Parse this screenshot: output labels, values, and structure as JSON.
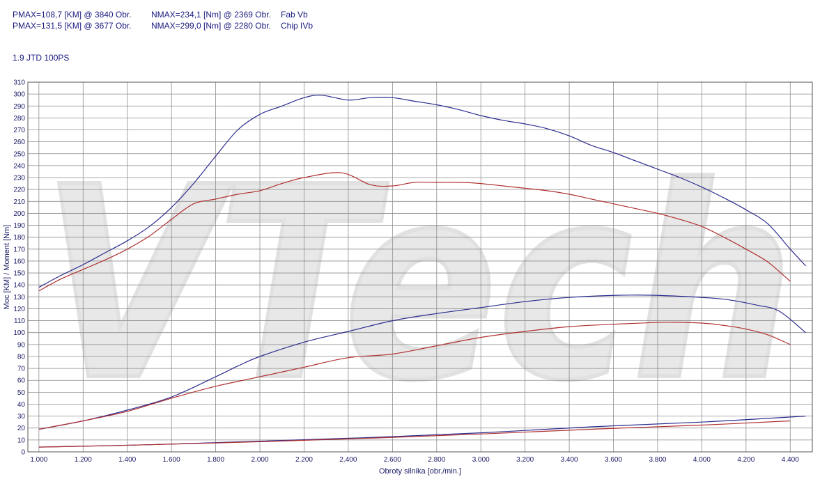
{
  "header": {
    "rows": [
      {
        "pmax": "PMAX=108,7 [KM] @ 3840 Obr.",
        "nmax": "NMAX=234,1 [Nm] @ 2369 Obr.",
        "name": "Fab Vb"
      },
      {
        "pmax": "PMAX=131,5 [KM] @ 3677 Obr.",
        "nmax": "NMAX=299,0 [Nm] @ 2280 Obr.",
        "name": "Chip IVb"
      }
    ],
    "engine": "1.9 JTD 100PS"
  },
  "watermark": "VTech",
  "chart_data": {
    "type": "line",
    "xlabel": "Obroty silnika [obr./min.]",
    "ylabel": "Moc [KM] / Moment [Nm]",
    "xlim": [
      950,
      4500
    ],
    "ylim": [
      0,
      310
    ],
    "x_ticks": [
      1000,
      1200,
      1400,
      1600,
      1800,
      2000,
      2200,
      2400,
      2600,
      2800,
      3000,
      3200,
      3400,
      3600,
      3800,
      4000,
      4200,
      4400
    ],
    "x_tick_labels": [
      "1.000",
      "1.200",
      "1.400",
      "1.600",
      "1.800",
      "2.000",
      "2.200",
      "2.400",
      "2.600",
      "2.800",
      "3.000",
      "3.200",
      "3.400",
      "3.600",
      "3.800",
      "4.000",
      "4.200",
      "4.400"
    ],
    "y_ticks": [
      0,
      10,
      20,
      30,
      40,
      50,
      60,
      70,
      80,
      90,
      100,
      110,
      120,
      130,
      140,
      150,
      160,
      170,
      180,
      190,
      200,
      210,
      220,
      230,
      240,
      250,
      260,
      270,
      280,
      290,
      300,
      310
    ],
    "grid": true,
    "colors": {
      "chip": "#2b2b8f",
      "stock": "#b03030",
      "grid": "#8c8c8c"
    },
    "series": [
      {
        "name": "Chip IVb",
        "group": "chip",
        "kind": "torque",
        "color": "#2b2b8f",
        "x": [
          1000,
          1100,
          1200,
          1300,
          1400,
          1500,
          1600,
          1700,
          1800,
          1900,
          2000,
          2100,
          2200,
          2280,
          2400,
          2500,
          2600,
          2700,
          2800,
          2900,
          3000,
          3100,
          3200,
          3300,
          3400,
          3500,
          3600,
          3700,
          3800,
          3900,
          4000,
          4100,
          4200,
          4300,
          4400,
          4470
        ],
        "y": [
          138,
          148,
          157,
          167,
          177,
          189,
          205,
          225,
          248,
          270,
          283,
          290,
          297,
          299,
          295,
          297,
          297,
          294,
          291,
          287,
          282,
          278,
          275,
          271,
          265,
          257,
          251,
          244,
          237,
          230,
          222,
          213,
          203,
          191,
          170,
          156
        ]
      },
      {
        "name": "Fab Vb",
        "group": "stock",
        "kind": "torque",
        "color": "#b03030",
        "x": [
          1000,
          1100,
          1200,
          1300,
          1400,
          1500,
          1600,
          1700,
          1800,
          1900,
          2000,
          2100,
          2200,
          2369,
          2500,
          2600,
          2700,
          2800,
          2900,
          3000,
          3100,
          3200,
          3300,
          3400,
          3500,
          3600,
          3700,
          3800,
          3900,
          4000,
          4100,
          4200,
          4300,
          4400
        ],
        "y": [
          135,
          145,
          153,
          161,
          170,
          181,
          195,
          208,
          212,
          216,
          219,
          225,
          230,
          234,
          224,
          223,
          226,
          226,
          226,
          225,
          223,
          221,
          219,
          216,
          212,
          208,
          204,
          200,
          195,
          189,
          180,
          170,
          159,
          143
        ]
      },
      {
        "name": "Chip IVb",
        "group": "chip",
        "kind": "power",
        "color": "#2b2b8f",
        "x": [
          1000,
          1200,
          1400,
          1600,
          1800,
          1900,
          2000,
          2200,
          2400,
          2600,
          2800,
          3000,
          3200,
          3400,
          3677,
          3900,
          4100,
          4250,
          4350,
          4470
        ],
        "y": [
          19,
          26,
          35,
          46,
          63,
          72,
          80,
          92,
          101,
          110,
          116,
          121,
          126,
          129.5,
          131.5,
          130.5,
          128,
          123,
          118,
          100
        ]
      },
      {
        "name": "Fab Vb",
        "group": "stock",
        "kind": "power",
        "color": "#b03030",
        "x": [
          1000,
          1200,
          1400,
          1600,
          1800,
          2000,
          2200,
          2400,
          2600,
          2800,
          3000,
          3200,
          3400,
          3600,
          3840,
          4000,
          4100,
          4200,
          4300,
          4400
        ],
        "y": [
          19,
          26,
          34,
          45,
          55,
          63,
          71,
          79,
          82,
          89,
          96,
          101,
          105,
          107,
          108.7,
          108,
          106,
          103,
          98,
          90
        ]
      },
      {
        "name": "Chip IVb",
        "group": "chip",
        "kind": "losses",
        "color": "#2b2b8f",
        "x": [
          1000,
          1500,
          2000,
          2500,
          3000,
          3500,
          4000,
          4470
        ],
        "y": [
          4,
          6,
          9,
          12,
          16,
          21,
          25,
          30
        ]
      },
      {
        "name": "Fab Vb",
        "group": "stock",
        "kind": "losses",
        "color": "#b03030",
        "x": [
          1000,
          1500,
          2000,
          2500,
          3000,
          3500,
          4000,
          4400
        ],
        "y": [
          4,
          6,
          8.5,
          11.5,
          15,
          19,
          22.5,
          26
        ]
      }
    ]
  }
}
